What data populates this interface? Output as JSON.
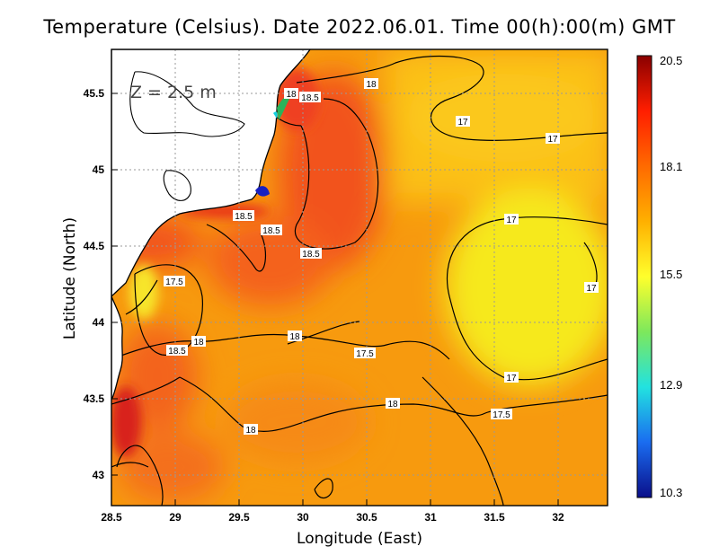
{
  "title": "Temperature (Celsius). Date 2022.06.01. Time 00(h):00(m) GMT",
  "depth_label": "Z = 2.5 m",
  "xlabel": "Longitude (East)",
  "ylabel": "Latitude (North)",
  "map": {
    "lon_range": [
      28.5,
      32.4
    ],
    "lat_range": [
      42.8,
      45.8
    ],
    "x_ticks": [
      "28.5",
      "29",
      "29.5",
      "30",
      "30.5",
      "31",
      "31.5",
      "32"
    ],
    "y_ticks": [
      "43",
      "43.5",
      "44",
      "44.5",
      "45",
      "45.5"
    ],
    "grid": "dotted"
  },
  "colorbar": {
    "labels": [
      "20.5",
      "18.1",
      "15.5",
      "12.9",
      "10.3"
    ],
    "min": 10.3,
    "max": 20.5,
    "colors": [
      "#0a0f8a",
      "#1a6cf0",
      "#22e2e0",
      "#7de85c",
      "#ffff2c",
      "#ffb000",
      "#ff6a00",
      "#ff1e00",
      "#8a0000"
    ]
  },
  "contour_labels": [
    "18",
    "18.5",
    "18",
    "17",
    "17",
    "18.5",
    "18.5",
    "18.5",
    "17",
    "17.5",
    "17",
    "18",
    "18.5",
    "17.5",
    "17",
    "18",
    "17.5",
    "18"
  ]
}
